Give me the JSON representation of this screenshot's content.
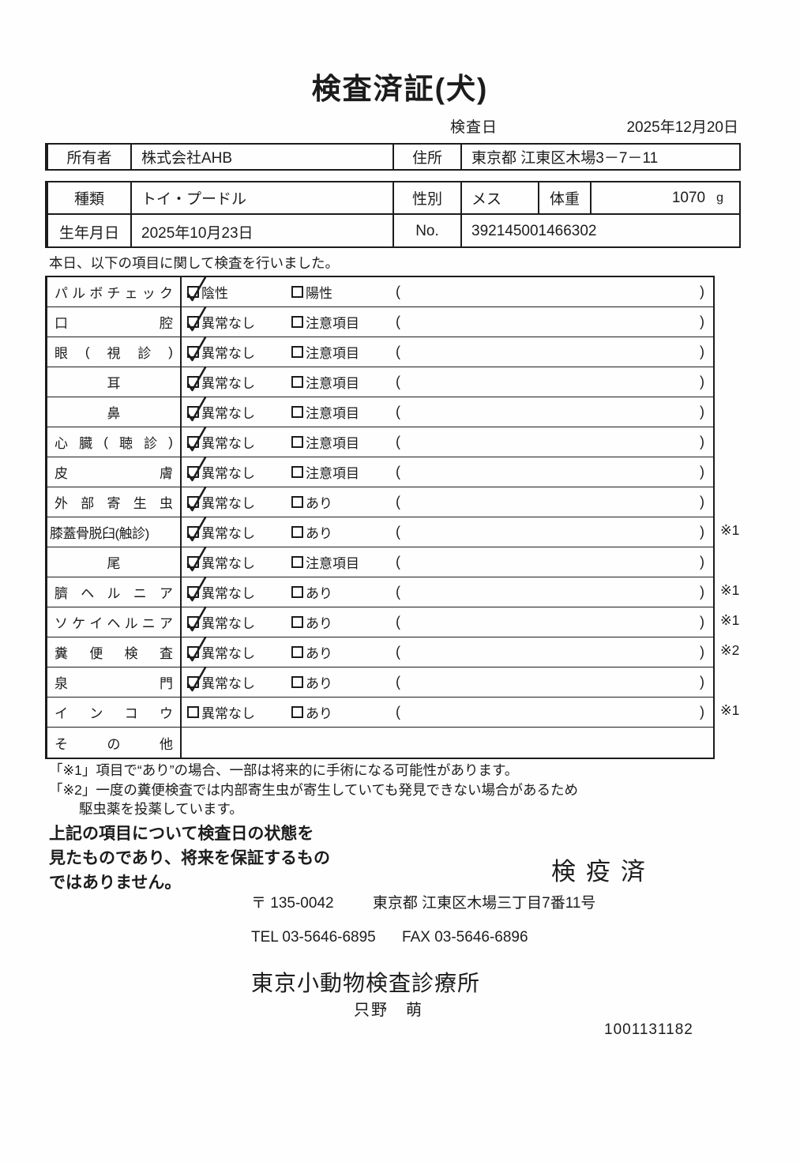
{
  "title": "検査済証(犬)",
  "inspection": {
    "date_label": "検査日",
    "date_value": "2025年12月20日"
  },
  "owner": {
    "label": "所有者",
    "value": "株式会社AHB",
    "address_label": "住所",
    "address_value": "東京都 江東区木場3－7－11"
  },
  "pet": {
    "breed_label": "種類",
    "breed_value": "トイ・プードル",
    "sex_label": "性別",
    "sex_value": "メス",
    "weight_label": "体重",
    "weight_value": "1070",
    "weight_unit": "g",
    "birth_label": "生年月日",
    "birth_value": "2025年10月23日",
    "no_label": "No.",
    "no_value": "392145001466302"
  },
  "intro_text": "本日、以下の項目に関して検査を行いました。",
  "paren_open": "(",
  "paren_close": ")",
  "checklist_rows": [
    {
      "label": "パルボチェック",
      "align": "spread",
      "opt1": "陰性",
      "opt2": "陽性",
      "checked": true,
      "note": ""
    },
    {
      "label": "口腔",
      "align": "spread",
      "opt1": "異常なし",
      "opt2": "注意項目",
      "checked": true,
      "note": ""
    },
    {
      "label": "眼(視診)",
      "align": "spread",
      "opt1": "異常なし",
      "opt2": "注意項目",
      "checked": true,
      "note": ""
    },
    {
      "label": "耳",
      "align": "center",
      "opt1": "異常なし",
      "opt2": "注意項目",
      "checked": true,
      "note": ""
    },
    {
      "label": "鼻",
      "align": "center",
      "opt1": "異常なし",
      "opt2": "注意項目",
      "checked": true,
      "note": ""
    },
    {
      "label": "心臓(聴診)",
      "align": "spread",
      "opt1": "異常なし",
      "opt2": "注意項目",
      "checked": true,
      "note": ""
    },
    {
      "label": "皮膚",
      "align": "spread",
      "opt1": "異常なし",
      "opt2": "注意項目",
      "checked": true,
      "note": ""
    },
    {
      "label": "外部寄生虫",
      "align": "spread",
      "opt1": "異常なし",
      "opt2": "あり",
      "checked": true,
      "note": ""
    },
    {
      "label": "膝蓋骨脱臼(触診)",
      "align": "left",
      "opt1": "異常なし",
      "opt2": "あり",
      "checked": true,
      "note": "※1"
    },
    {
      "label": "尾",
      "align": "center",
      "opt1": "異常なし",
      "opt2": "注意項目",
      "checked": true,
      "note": ""
    },
    {
      "label": "臍ヘルニア",
      "align": "spread",
      "opt1": "異常なし",
      "opt2": "あり",
      "checked": true,
      "note": "※1"
    },
    {
      "label": "ソケイヘルニア",
      "align": "spread",
      "opt1": "異常なし",
      "opt2": "あり",
      "checked": true,
      "note": "※1"
    },
    {
      "label": "糞便検査",
      "align": "spread",
      "opt1": "異常なし",
      "opt2": "あり",
      "checked": true,
      "note": "※2"
    },
    {
      "label": "泉門",
      "align": "spread",
      "opt1": "異常なし",
      "opt2": "あり",
      "checked": true,
      "note": ""
    },
    {
      "label": "インコウ",
      "align": "spread",
      "opt1": "異常なし",
      "opt2": "あり",
      "checked": false,
      "note": "※1"
    },
    {
      "label": "その他",
      "align": "spread",
      "opt1": "",
      "opt2": "",
      "checked": null,
      "note": ""
    }
  ],
  "footnotes": {
    "line1": "「※1」項目で“あり”の場合、一部は将来的に手術になる可能性があります。",
    "line2": "「※2」一度の糞便検査では内部寄生虫が寄生していても発見できない場合があるため",
    "line3": "駆虫薬を投薬しています。"
  },
  "disclaimer": {
    "line1": "上記の項目について検査日の状態を",
    "line2": "見たものであり、将来を保証するもの",
    "line3": "ではありません。"
  },
  "stamp_text": "検疫済",
  "clinic": {
    "postal": "〒 135-0042",
    "address": "東京都 江東区木場三丁目7番11号",
    "tel": "TEL 03-5646-6895",
    "fax": "FAX 03-5646-6896",
    "name": "東京小動物検査診療所",
    "vet_name": "只野　萌"
  },
  "doc_number": "1001131182"
}
